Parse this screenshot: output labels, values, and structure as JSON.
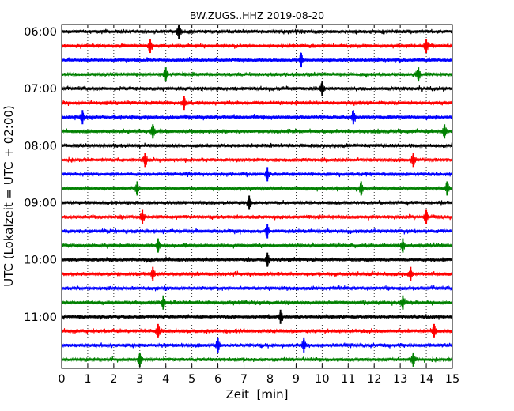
{
  "chart_data": {
    "type": "line",
    "title": "BW.ZUGS..HHZ 2019-08-20",
    "xlabel": "Zeit  [min]",
    "ylabel": "UTC (Lokalzeit = UTC + 02:00)",
    "xlim": [
      0,
      15
    ],
    "x_ticks": [
      "0",
      "1",
      "2",
      "3",
      "4",
      "5",
      "6",
      "7",
      "8",
      "9",
      "10",
      "11",
      "12",
      "13",
      "14",
      "15"
    ],
    "y_ticks": [
      "06:00",
      "07:00",
      "08:00",
      "09:00",
      "10:00",
      "11:00"
    ],
    "grid": "vertical dotted at each minute",
    "trace_colors": [
      "#000000",
      "#ff0000",
      "#0000ff",
      "#008000"
    ],
    "traces": [
      {
        "start": "06:00",
        "events": [
          4.5
        ]
      },
      {
        "start": "06:15",
        "events": [
          3.4,
          14.0
        ]
      },
      {
        "start": "06:30",
        "events": [
          9.2
        ]
      },
      {
        "start": "06:45",
        "events": [
          4.0,
          13.7
        ]
      },
      {
        "start": "07:00",
        "events": [
          10.0
        ]
      },
      {
        "start": "07:15",
        "events": [
          4.7
        ]
      },
      {
        "start": "07:30",
        "events": [
          0.8,
          11.2
        ]
      },
      {
        "start": "07:45",
        "events": [
          3.5,
          14.7
        ]
      },
      {
        "start": "08:00",
        "events": []
      },
      {
        "start": "08:15",
        "events": [
          3.2,
          13.5
        ]
      },
      {
        "start": "08:30",
        "events": [
          7.9
        ]
      },
      {
        "start": "08:45",
        "events": [
          2.9,
          11.5,
          14.8
        ]
      },
      {
        "start": "09:00",
        "events": [
          7.2
        ]
      },
      {
        "start": "09:15",
        "events": [
          3.1,
          14.0
        ]
      },
      {
        "start": "09:30",
        "events": [
          7.9
        ]
      },
      {
        "start": "09:45",
        "events": [
          3.7,
          13.1
        ]
      },
      {
        "start": "10:00",
        "events": [
          7.9
        ]
      },
      {
        "start": "10:15",
        "events": [
          3.5,
          13.4
        ]
      },
      {
        "start": "10:30",
        "events": []
      },
      {
        "start": "10:45",
        "events": [
          3.9,
          13.1
        ]
      },
      {
        "start": "11:00",
        "events": [
          8.4
        ]
      },
      {
        "start": "11:15",
        "events": [
          3.7,
          14.3
        ]
      },
      {
        "start": "11:30",
        "events": [
          6.0,
          9.3
        ]
      },
      {
        "start": "11:45",
        "events": [
          3.0,
          13.5
        ]
      }
    ]
  }
}
